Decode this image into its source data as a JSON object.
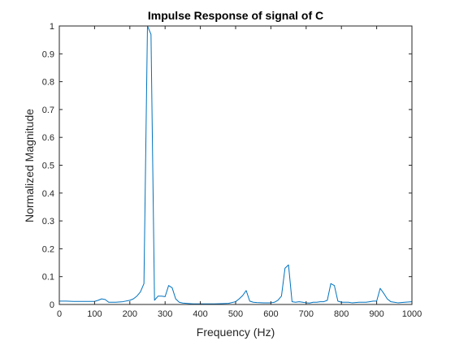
{
  "chart_data": {
    "type": "line",
    "title": "Impulse Response of signal of C",
    "xlabel": "Frequency (Hz)",
    "ylabel": "Normalized Magnitude",
    "xlim": [
      0,
      1000
    ],
    "ylim": [
      0,
      1
    ],
    "xticks": [
      "0",
      "100",
      "200",
      "300",
      "400",
      "500",
      "600",
      "700",
      "800",
      "900",
      "1000"
    ],
    "yticks": [
      "0",
      "0.1",
      "0.2",
      "0.3",
      "0.4",
      "0.5",
      "0.6",
      "0.7",
      "0.8",
      "0.9",
      "1"
    ],
    "grid": false,
    "box": true,
    "series": [
      {
        "color": "#0072bd",
        "x": [
          0,
          20,
          40,
          60,
          80,
          100,
          110,
          120,
          130,
          140,
          160,
          180,
          200,
          210,
          220,
          230,
          240,
          250,
          260,
          270,
          280,
          290,
          300,
          310,
          320,
          330,
          340,
          350,
          360,
          370,
          380,
          390,
          400,
          420,
          440,
          460,
          480,
          500,
          510,
          520,
          530,
          540,
          550,
          560,
          580,
          600,
          610,
          620,
          630,
          640,
          650,
          660,
          670,
          680,
          690,
          700,
          710,
          720,
          730,
          740,
          750,
          760,
          770,
          780,
          790,
          800,
          810,
          820,
          830,
          840,
          850,
          860,
          870,
          880,
          890,
          900,
          910,
          920,
          930,
          940,
          950,
          960,
          980,
          1000
        ],
        "y": [
          0.012,
          0.012,
          0.011,
          0.011,
          0.011,
          0.011,
          0.015,
          0.02,
          0.018,
          0.008,
          0.008,
          0.01,
          0.015,
          0.02,
          0.03,
          0.045,
          0.075,
          1.0,
          0.97,
          0.015,
          0.03,
          0.03,
          0.028,
          0.068,
          0.06,
          0.02,
          0.008,
          0.005,
          0.004,
          0.003,
          0.002,
          0.002,
          0.002,
          0.002,
          0.002,
          0.003,
          0.004,
          0.01,
          0.02,
          0.032,
          0.05,
          0.012,
          0.008,
          0.007,
          0.006,
          0.006,
          0.008,
          0.015,
          0.03,
          0.13,
          0.142,
          0.01,
          0.008,
          0.01,
          0.008,
          0.006,
          0.005,
          0.008,
          0.008,
          0.01,
          0.01,
          0.015,
          0.075,
          0.068,
          0.012,
          0.008,
          0.008,
          0.008,
          0.006,
          0.007,
          0.008,
          0.008,
          0.008,
          0.01,
          0.012,
          0.012,
          0.058,
          0.04,
          0.02,
          0.01,
          0.008,
          0.006,
          0.008,
          0.01
        ]
      }
    ]
  }
}
